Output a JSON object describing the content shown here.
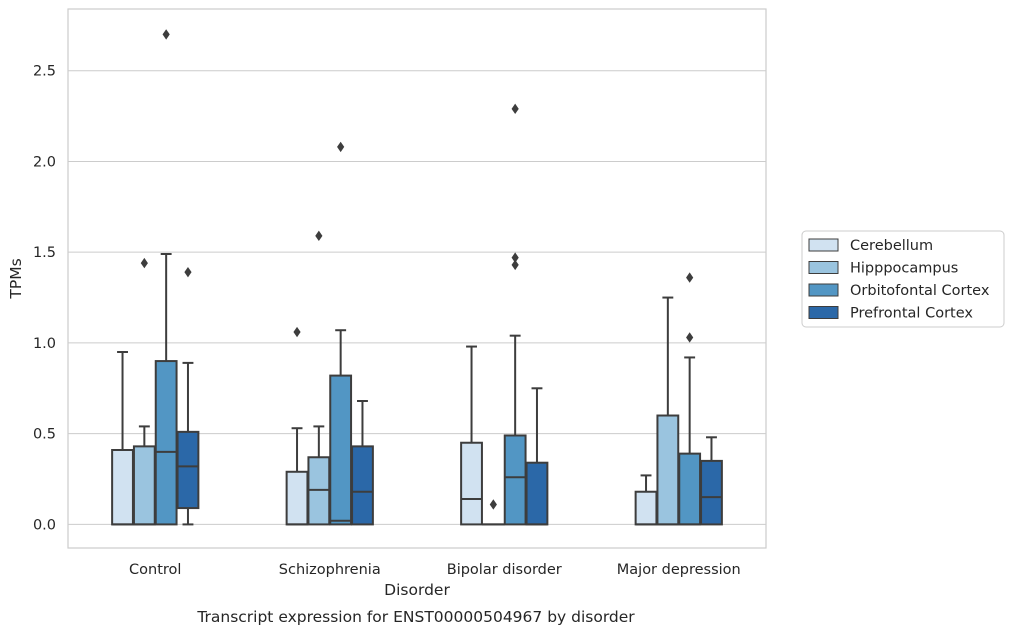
{
  "caption": "Transcript expression for ENST00000504967 by disorder",
  "chart_data": {
    "type": "box",
    "title": "",
    "xlabel": "Disorder",
    "ylabel": "TPMs",
    "ylim": [
      -0.13,
      2.84
    ],
    "yticks": [
      "0.0",
      "0.5",
      "1.0",
      "1.5",
      "2.0",
      "2.5"
    ],
    "grid": "horizontal",
    "legend_position": "right",
    "categories": [
      "Control",
      "Schizophrenia",
      "Bipolar disorder",
      "Major depression"
    ],
    "series": [
      {
        "name": "Cerebellum",
        "color": "#d1e2f1",
        "boxes": [
          {
            "q1": 0.0,
            "median": 0.0,
            "q3": 0.41,
            "whisker_low": 0.0,
            "whisker_high": 0.95,
            "outliers": []
          },
          {
            "q1": 0.0,
            "median": 0.0,
            "q3": 0.29,
            "whisker_low": 0.0,
            "whisker_high": 0.53,
            "outliers": [
              1.06
            ]
          },
          {
            "q1": 0.0,
            "median": 0.14,
            "q3": 0.45,
            "whisker_low": 0.0,
            "whisker_high": 0.98,
            "outliers": []
          },
          {
            "q1": 0.0,
            "median": 0.0,
            "q3": 0.18,
            "whisker_low": 0.0,
            "whisker_high": 0.27,
            "outliers": []
          }
        ]
      },
      {
        "name": "Hipppocampus",
        "color": "#9ac4df",
        "boxes": [
          {
            "q1": 0.0,
            "median": 0.0,
            "q3": 0.43,
            "whisker_low": 0.0,
            "whisker_high": 0.54,
            "outliers": [
              1.44
            ]
          },
          {
            "q1": 0.0,
            "median": 0.19,
            "q3": 0.37,
            "whisker_low": 0.0,
            "whisker_high": 0.54,
            "outliers": [
              1.59
            ]
          },
          {
            "q1": 0.0,
            "median": 0.0,
            "q3": 0.0,
            "whisker_low": 0.0,
            "whisker_high": 0.0,
            "outliers": [
              0.11
            ]
          },
          {
            "q1": 0.0,
            "median": 0.0,
            "q3": 0.6,
            "whisker_low": 0.0,
            "whisker_high": 1.25,
            "outliers": []
          }
        ]
      },
      {
        "name": "Orbitofontal Cortex",
        "color": "#5296c4",
        "boxes": [
          {
            "q1": 0.0,
            "median": 0.4,
            "q3": 0.9,
            "whisker_low": 0.0,
            "whisker_high": 1.49,
            "outliers": [
              2.7
            ]
          },
          {
            "q1": 0.0,
            "median": 0.02,
            "q3": 0.82,
            "whisker_low": 0.0,
            "whisker_high": 1.07,
            "outliers": [
              2.08
            ]
          },
          {
            "q1": 0.0,
            "median": 0.26,
            "q3": 0.49,
            "whisker_low": 0.0,
            "whisker_high": 1.04,
            "outliers": [
              1.47,
              1.43,
              2.29
            ]
          },
          {
            "q1": 0.0,
            "median": 0.0,
            "q3": 0.39,
            "whisker_low": 0.0,
            "whisker_high": 0.92,
            "outliers": [
              1.03,
              1.36
            ]
          }
        ]
      },
      {
        "name": "Prefrontal Cortex",
        "color": "#2b68a8",
        "boxes": [
          {
            "q1": 0.09,
            "median": 0.32,
            "q3": 0.51,
            "whisker_low": 0.0,
            "whisker_high": 0.89,
            "outliers": [
              1.39
            ]
          },
          {
            "q1": 0.0,
            "median": 0.18,
            "q3": 0.43,
            "whisker_low": 0.0,
            "whisker_high": 0.68,
            "outliers": []
          },
          {
            "q1": 0.0,
            "median": 0.0,
            "q3": 0.34,
            "whisker_low": 0.0,
            "whisker_high": 0.75,
            "outliers": []
          },
          {
            "q1": 0.0,
            "median": 0.15,
            "q3": 0.35,
            "whisker_low": 0.0,
            "whisker_high": 0.48,
            "outliers": []
          }
        ]
      }
    ]
  }
}
